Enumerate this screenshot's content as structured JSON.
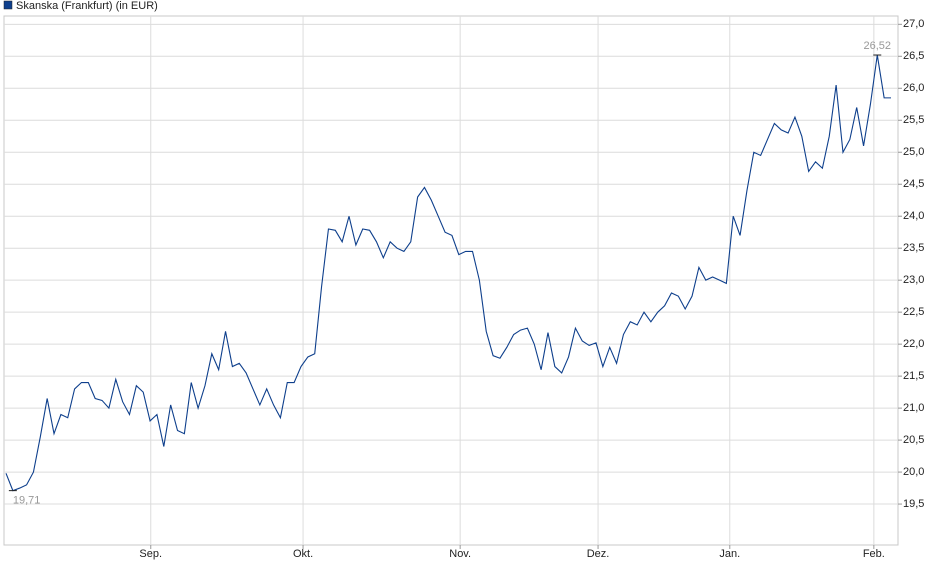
{
  "chart_data": {
    "type": "line",
    "series": [
      {
        "name": "Skanska (Frankfurt) (in EUR)",
        "color": "#0e3f8c",
        "values": [
          19.98,
          19.71,
          19.75,
          19.8,
          20.0,
          20.55,
          21.15,
          20.6,
          20.9,
          20.85,
          21.3,
          21.4,
          21.4,
          21.15,
          21.12,
          21.0,
          21.45,
          21.1,
          20.9,
          21.35,
          21.25,
          20.8,
          20.9,
          20.4,
          21.05,
          20.65,
          20.6,
          21.4,
          21.0,
          21.35,
          21.85,
          21.6,
          22.2,
          21.65,
          21.7,
          21.55,
          21.3,
          21.05,
          21.3,
          21.05,
          20.85,
          21.4,
          21.4,
          21.65,
          21.8,
          21.85,
          22.9,
          23.8,
          23.78,
          23.6,
          24.0,
          23.55,
          23.8,
          23.78,
          23.6,
          23.35,
          23.6,
          23.5,
          23.45,
          23.6,
          24.3,
          24.45,
          24.25,
          24.0,
          23.75,
          23.7,
          23.4,
          23.45,
          23.45,
          23.0,
          22.2,
          21.82,
          21.78,
          21.95,
          22.15,
          22.22,
          22.25,
          22.0,
          21.6,
          22.18,
          21.65,
          21.55,
          21.8,
          22.25,
          22.05,
          21.98,
          22.02,
          21.65,
          21.95,
          21.7,
          22.15,
          22.35,
          22.3,
          22.5,
          22.35,
          22.5,
          22.6,
          22.8,
          22.75,
          22.55,
          22.75,
          23.2,
          23.0,
          23.05,
          23.0,
          22.95,
          24.0,
          23.7,
          24.4,
          25.0,
          24.95,
          25.2,
          25.45,
          25.35,
          25.3,
          25.55,
          25.25,
          24.7,
          24.85,
          24.75,
          25.25,
          26.05,
          25.0,
          25.2,
          25.7,
          25.1,
          25.75,
          26.52,
          25.85,
          25.85
        ]
      }
    ],
    "xlim": [
      0,
      129
    ],
    "xticks": [
      {
        "value": 21.1,
        "label": "Sep."
      },
      {
        "value": 43.3,
        "label": "Okt."
      },
      {
        "value": 66.2,
        "label": "Nov."
      },
      {
        "value": 86.3,
        "label": "Dez."
      },
      {
        "value": 105.5,
        "label": "Jan."
      },
      {
        "value": 126.5,
        "label": "Feb."
      }
    ],
    "ylim": [
      18.86,
      27.13
    ],
    "yticks": [
      {
        "value": 19.5,
        "label": "19,5"
      },
      {
        "value": 20.0,
        "label": "20,0"
      },
      {
        "value": 20.5,
        "label": "20,5"
      },
      {
        "value": 21.0,
        "label": "21,0"
      },
      {
        "value": 21.5,
        "label": "21,5"
      },
      {
        "value": 22.0,
        "label": "22,0"
      },
      {
        "value": 22.5,
        "label": "22,5"
      },
      {
        "value": 23.0,
        "label": "23,0"
      },
      {
        "value": 23.5,
        "label": "23,5"
      },
      {
        "value": 24.0,
        "label": "24,0"
      },
      {
        "value": 24.5,
        "label": "24,5"
      },
      {
        "value": 25.0,
        "label": "25,0"
      },
      {
        "value": 25.5,
        "label": "25,5"
      },
      {
        "value": 26.0,
        "label": "26,0"
      },
      {
        "value": 26.5,
        "label": "26,5"
      },
      {
        "value": 27.0,
        "label": "27,0"
      }
    ],
    "annotations": [
      {
        "value": 19.71,
        "label": "19,71"
      },
      {
        "value": 26.52,
        "label": "26,52"
      }
    ],
    "grid": true
  }
}
